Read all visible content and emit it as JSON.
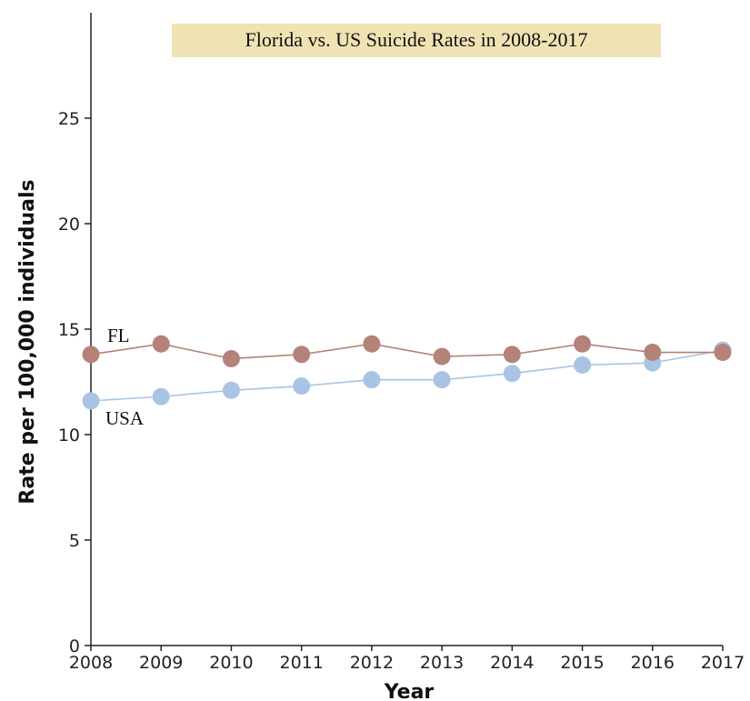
{
  "chart_data": {
    "type": "line",
    "title": "Florida vs. US Suicide Rates in 2008-2017",
    "xlabel": "Year",
    "ylabel": "Rate per 100,000 individuals",
    "x": [
      2008,
      2009,
      2010,
      2011,
      2012,
      2013,
      2014,
      2015,
      2016,
      2017
    ],
    "ylim": [
      0,
      30
    ],
    "yticks": [
      0,
      5,
      10,
      15,
      20,
      25
    ],
    "grid": false,
    "series": [
      {
        "name": "FL",
        "color": "#b5827a",
        "values": [
          13.8,
          14.3,
          13.6,
          13.8,
          14.3,
          13.7,
          13.8,
          14.3,
          13.9,
          13.9
        ]
      },
      {
        "name": "USA",
        "color": "#a9c3e3",
        "values": [
          11.6,
          11.8,
          12.1,
          12.3,
          12.6,
          12.6,
          12.9,
          13.3,
          13.4,
          14.0
        ]
      }
    ],
    "title_bg_color": "#efe3b3"
  }
}
